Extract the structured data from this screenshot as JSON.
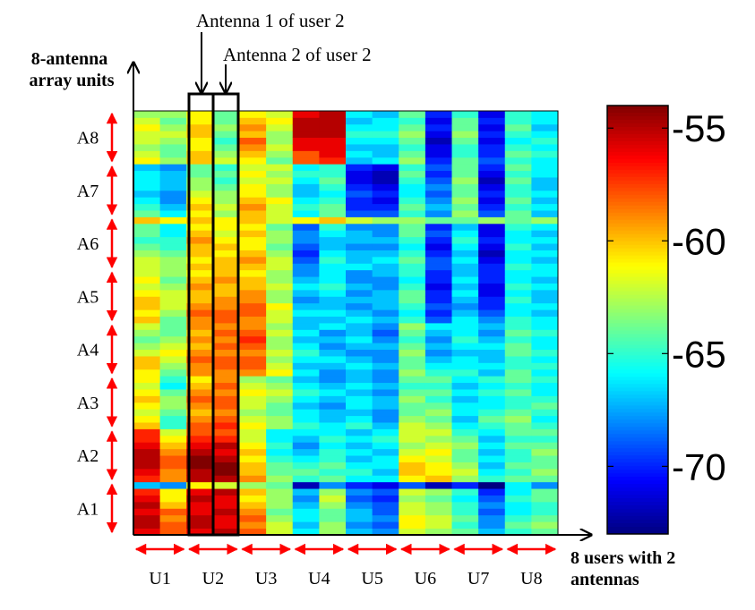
{
  "chart_data": {
    "type": "heatmap",
    "xlabel": "8 users with 2 antennas",
    "ylabel": "8-antenna array units",
    "x_categories": [
      "U1",
      "U2",
      "U3",
      "U4",
      "U5",
      "U6",
      "U7",
      "U8"
    ],
    "x_columns_per_category": 2,
    "y_categories": [
      "A1",
      "A2",
      "A3",
      "A4",
      "A5",
      "A6",
      "A7",
      "A8"
    ],
    "y_rows_per_category": 8,
    "colorbar": {
      "ticks": [
        -55,
        -60,
        -65,
        -70
      ],
      "range": [
        -73,
        -54
      ],
      "colormap": "jet"
    },
    "annotations": [
      "Antenna 1 of user 2",
      "Antenna 2 of user 2"
    ],
    "grid": false,
    "column_profiles": [
      [
        -56,
        -55,
        -55,
        -56,
        -55,
        -56,
        -57,
        -58,
        -57,
        -56,
        -55,
        -55,
        -55,
        -56,
        -57,
        -57,
        -60,
        -61,
        -62,
        -61,
        -60,
        -61,
        -62,
        -61,
        -61,
        -60,
        -60,
        -62,
        -63,
        -64,
        -63,
        -62,
        -60,
        -61,
        -60,
        -60,
        -61,
        -62,
        -61,
        -62,
        -62,
        -62,
        -63,
        -64,
        -65,
        -64,
        -64,
        -64,
        -64,
        -65,
        -66,
        -67,
        -66,
        -66,
        -66,
        -67,
        -61,
        -62,
        -63,
        -62,
        -62,
        -61,
        -62,
        -63
      ],
      [
        -58,
        -58,
        -59,
        -58,
        -60,
        -61,
        -61,
        -62,
        -59,
        -59,
        -58,
        -58,
        -59,
        -60,
        -61,
        -62,
        -65,
        -65,
        -64,
        -63,
        -63,
        -64,
        -66,
        -65,
        -64,
        -63,
        -62,
        -61,
        -62,
        -63,
        -64,
        -64,
        -64,
        -63,
        -62,
        -62,
        -62,
        -63,
        -64,
        -63,
        -63,
        -63,
        -64,
        -65,
        -65,
        -66,
        -66,
        -66,
        -66,
        -67,
        -68,
        -68,
        -67,
        -67,
        -67,
        -68,
        -63,
        -64,
        -64,
        -63,
        -62,
        -63,
        -64,
        -63
      ],
      [
        -56,
        -55,
        -55,
        -56,
        -56,
        -55,
        -56,
        -57,
        -55,
        -55,
        -54,
        -54,
        -55,
        -56,
        -57,
        -58,
        -58,
        -59,
        -60,
        -59,
        -58,
        -59,
        -60,
        -61,
        -59,
        -59,
        -58,
        -59,
        -60,
        -59,
        -60,
        -59,
        -59,
        -58,
        -59,
        -60,
        -60,
        -59,
        -60,
        -61,
        -60,
        -61,
        -60,
        -60,
        -59,
        -60,
        -61,
        -62,
        -61,
        -60,
        -61,
        -62,
        -63,
        -63,
        -64,
        -64,
        -60,
        -60,
        -61,
        -61,
        -60,
        -60,
        -61,
        -61
      ],
      [
        -55,
        -56,
        -56,
        -55,
        -56,
        -56,
        -55,
        -56,
        -55,
        -54,
        -54,
        -55,
        -56,
        -55,
        -57,
        -58,
        -57,
        -58,
        -59,
        -58,
        -58,
        -59,
        -58,
        -59,
        -59,
        -58,
        -58,
        -59,
        -58,
        -59,
        -58,
        -59,
        -58,
        -58,
        -59,
        -59,
        -60,
        -60,
        -59,
        -60,
        -60,
        -60,
        -61,
        -60,
        -61,
        -62,
        -61,
        -61,
        -63,
        -62,
        -63,
        -63,
        -64,
        -65,
        -64,
        -65,
        -62,
        -63,
        -64,
        -65,
        -64,
        -63,
        -64,
        -64
      ],
      [
        -58,
        -59,
        -58,
        -59,
        -60,
        -61,
        -60,
        -59,
        -59,
        -60,
        -60,
        -61,
        -60,
        -61,
        -62,
        -62,
        -61,
        -62,
        -63,
        -62,
        -62,
        -61,
        -62,
        -63,
        -59,
        -58,
        -58,
        -59,
        -58,
        -57,
        -58,
        -59,
        -59,
        -58,
        -58,
        -59,
        -59,
        -60,
        -60,
        -61,
        -60,
        -59,
        -60,
        -61,
        -61,
        -60,
        -61,
        -62,
        -60,
        -59,
        -60,
        -61,
        -61,
        -62,
        -61,
        -62,
        -61,
        -60,
        -59,
        -58,
        -60,
        -59,
        -60,
        -61
      ],
      [
        -62,
        -62,
        -63,
        -64,
        -63,
        -63,
        -63,
        -64,
        -63,
        -64,
        -64,
        -65,
        -66,
        -65,
        -66,
        -66,
        -63,
        -63,
        -64,
        -64,
        -63,
        -62,
        -63,
        -64,
        -61,
        -62,
        -63,
        -62,
        -63,
        -63,
        -62,
        -63,
        -62,
        -62,
        -61,
        -63,
        -63,
        -62,
        -63,
        -63,
        -62,
        -62,
        -63,
        -64,
        -63,
        -63,
        -64,
        -64,
        -62,
        -62,
        -61,
        -63,
        -63,
        -62,
        -63,
        -62,
        -64,
        -63,
        -62,
        -63,
        -63,
        -62,
        -61,
        -62
      ],
      [
        -66,
        -67,
        -66,
        -66,
        -67,
        -68,
        -67,
        -66,
        -65,
        -64,
        -65,
        -66,
        -67,
        -68,
        -67,
        -66,
        -65,
        -66,
        -66,
        -67,
        -66,
        -65,
        -66,
        -67,
        -66,
        -67,
        -66,
        -65,
        -66,
        -67,
        -66,
        -67,
        -67,
        -66,
        -67,
        -68,
        -67,
        -66,
        -67,
        -68,
        -68,
        -69,
        -70,
        -69,
        -68,
        -68,
        -69,
        -68,
        -66,
        -65,
        -66,
        -67,
        -67,
        -66,
        -65,
        -66,
        -58,
        -58,
        -56,
        -56,
        -55,
        -55,
        -55,
        -56
      ],
      [
        -63,
        -63,
        -64,
        -64,
        -63,
        -62,
        -63,
        -63,
        -64,
        -65,
        -64,
        -65,
        -65,
        -66,
        -65,
        -66,
        -66,
        -67,
        -67,
        -68,
        -67,
        -66,
        -67,
        -68,
        -68,
        -67,
        -66,
        -67,
        -68,
        -67,
        -68,
        -66,
        -67,
        -66,
        -67,
        -67,
        -66,
        -65,
        -66,
        -66,
        -66,
        -65,
        -66,
        -67,
        -67,
        -66,
        -65,
        -66,
        -64,
        -64,
        -65,
        -66,
        -65,
        -64,
        -65,
        -65,
        -57,
        -56,
        -56,
        -56,
        -55,
        -55,
        -55,
        -55
      ],
      [
        -67,
        -68,
        -67,
        -67,
        -68,
        -69,
        -68,
        -67,
        -66,
        -65,
        -66,
        -67,
        -66,
        -67,
        -66,
        -67,
        -65,
        -66,
        -67,
        -66,
        -66,
        -67,
        -66,
        -67,
        -67,
        -66,
        -67,
        -68,
        -67,
        -66,
        -67,
        -67,
        -66,
        -67,
        -68,
        -67,
        -68,
        -67,
        -68,
        -68,
        -66,
        -67,
        -67,
        -68,
        -67,
        -67,
        -68,
        -68,
        -69,
        -70,
        -70,
        -69,
        -70,
        -71,
        -71,
        -70,
        -67,
        -66,
        -67,
        -66,
        -65,
        -66,
        -67,
        -66
      ],
      [
        -68,
        -69,
        -68,
        -69,
        -69,
        -70,
        -69,
        -68,
        -66,
        -67,
        -66,
        -66,
        -67,
        -66,
        -65,
        -66,
        -67,
        -68,
        -68,
        -67,
        -67,
        -68,
        -67,
        -68,
        -68,
        -67,
        -68,
        -68,
        -67,
        -68,
        -69,
        -68,
        -67,
        -68,
        -67,
        -67,
        -67,
        -68,
        -68,
        -67,
        -67,
        -66,
        -67,
        -68,
        -67,
        -68,
        -68,
        -67,
        -69,
        -70,
        -71,
        -70,
        -71,
        -72,
        -72,
        -71,
        -66,
        -67,
        -67,
        -66,
        -65,
        -66,
        -66,
        -67
      ],
      [
        -62,
        -61,
        -61,
        -62,
        -62,
        -63,
        -62,
        -62,
        -61,
        -60,
        -60,
        -61,
        -62,
        -63,
        -62,
        -62,
        -62,
        -63,
        -64,
        -64,
        -63,
        -64,
        -65,
        -64,
        -63,
        -64,
        -64,
        -63,
        -64,
        -65,
        -64,
        -63,
        -65,
        -66,
        -65,
        -64,
        -64,
        -65,
        -66,
        -65,
        -65,
        -64,
        -65,
        -66,
        -65,
        -64,
        -64,
        -63,
        -65,
        -64,
        -65,
        -66,
        -66,
        -65,
        -64,
        -65,
        -63,
        -64,
        -65,
        -64,
        -63,
        -64,
        -65,
        -64
      ],
      [
        -63,
        -62,
        -62,
        -63,
        -63,
        -64,
        -63,
        -62,
        -60,
        -61,
        -61,
        -62,
        -61,
        -62,
        -63,
        -62,
        -63,
        -64,
        -63,
        -64,
        -65,
        -64,
        -65,
        -64,
        -65,
        -66,
        -67,
        -68,
        -67,
        -68,
        -67,
        -66,
        -69,
        -70,
        -69,
        -70,
        -70,
        -71,
        -70,
        -70,
        -69,
        -69,
        -70,
        -71,
        -70,
        -69,
        -70,
        -70,
        -68,
        -67,
        -68,
        -69,
        -68,
        -69,
        -70,
        -69,
        -70,
        -71,
        -71,
        -72,
        -71,
        -70,
        -71,
        -70
      ],
      [
        -64,
        -65,
        -64,
        -65,
        -65,
        -66,
        -65,
        -64,
        -63,
        -62,
        -63,
        -64,
        -64,
        -63,
        -64,
        -65,
        -66,
        -67,
        -66,
        -66,
        -67,
        -66,
        -67,
        -66,
        -65,
        -66,
        -66,
        -67,
        -66,
        -65,
        -66,
        -66,
        -66,
        -67,
        -68,
        -67,
        -66,
        -67,
        -66,
        -67,
        -67,
        -66,
        -67,
        -66,
        -65,
        -66,
        -67,
        -66,
        -63,
        -64,
        -63,
        -64,
        -64,
        -63,
        -64,
        -64,
        -64,
        -65,
        -65,
        -64,
        -63,
        -64,
        -64,
        -65
      ],
      [
        -67,
        -68,
        -68,
        -69,
        -68,
        -69,
        -70,
        -69,
        -65,
        -66,
        -67,
        -66,
        -67,
        -66,
        -67,
        -66,
        -65,
        -64,
        -65,
        -66,
        -66,
        -65,
        -66,
        -65,
        -67,
        -66,
        -67,
        -67,
        -66,
        -67,
        -68,
        -67,
        -68,
        -69,
        -70,
        -70,
        -71,
        -71,
        -70,
        -70,
        -70,
        -71,
        -72,
        -71,
        -70,
        -71,
        -71,
        -70,
        -69,
        -70,
        -71,
        -70,
        -71,
        -72,
        -71,
        -70,
        -69,
        -70,
        -70,
        -71,
        -70,
        -71,
        -70,
        -71
      ],
      [
        -65,
        -64,
        -65,
        -66,
        -66,
        -65,
        -66,
        -65,
        -64,
        -65,
        -64,
        -65,
        -65,
        -64,
        -65,
        -64,
        -64,
        -63,
        -64,
        -65,
        -65,
        -64,
        -65,
        -64,
        -64,
        -65,
        -65,
        -64,
        -64,
        -65,
        -64,
        -65,
        -65,
        -66,
        -66,
        -65,
        -66,
        -65,
        -66,
        -66,
        -65,
        -66,
        -66,
        -65,
        -66,
        -66,
        -65,
        -65,
        -64,
        -65,
        -64,
        -65,
        -65,
        -64,
        -65,
        -64,
        -65,
        -64,
        -65,
        -66,
        -65,
        -64,
        -65,
        -65
      ],
      [
        -64,
        -63,
        -64,
        -65,
        -65,
        -64,
        -64,
        -63,
        -64,
        -63,
        -64,
        -64,
        -63,
        -64,
        -65,
        -64,
        -65,
        -66,
        -65,
        -64,
        -65,
        -66,
        -66,
        -65,
        -66,
        -65,
        -66,
        -65,
        -66,
        -66,
        -65,
        -66,
        -66,
        -67,
        -66,
        -67,
        -67,
        -66,
        -67,
        -66,
        -66,
        -67,
        -66,
        -67,
        -66,
        -67,
        -66,
        -66,
        -67,
        -66,
        -67,
        -66,
        -67,
        -67,
        -66,
        -66,
        -66,
        -65,
        -66,
        -65,
        -66,
        -67,
        -66,
        -66
      ]
    ],
    "row_overrides": [
      {
        "row": 7,
        "values": [
          -67,
          -68,
          -61,
          -62,
          -63,
          -64,
          -72,
          -68,
          -70,
          -71,
          -69,
          -72,
          -70,
          -73,
          -66,
          -68
        ]
      },
      {
        "row": 47,
        "values": [
          -60,
          -61,
          -60,
          -61,
          -60,
          -62,
          -61,
          -60,
          -62,
          -63,
          -63,
          -64,
          -64,
          -63,
          -64,
          -63
        ]
      }
    ]
  }
}
